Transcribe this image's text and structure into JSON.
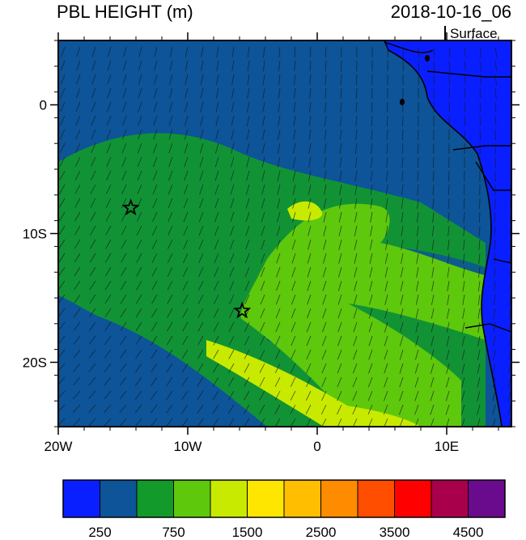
{
  "header": {
    "title": "PBL HEIGHT (m)",
    "datetime": "2018-10-16_06",
    "level": "Surface"
  },
  "chart_data": {
    "type": "heatmap",
    "title": "PBL HEIGHT (m)",
    "xlim": [
      -20,
      15
    ],
    "ylim": [
      -25,
      5
    ],
    "x_tick_values": [
      -20,
      -10,
      0,
      10
    ],
    "x_ticks": [
      "20W",
      "10W",
      "0",
      "10E"
    ],
    "y_tick_values": [
      0,
      -10,
      -20
    ],
    "y_ticks": [
      "0",
      "10S",
      "20S"
    ],
    "markers": [
      {
        "name": "star",
        "lon": -14.4,
        "lat": -8.0
      },
      {
        "name": "star",
        "lon": -5.8,
        "lat": -16.0
      }
    ],
    "colorbar": {
      "colors": [
        "#0a1fff",
        "#0d5499",
        "#129a2a",
        "#5ec80c",
        "#c8ea00",
        "#ffe600",
        "#ffbf00",
        "#ff8c00",
        "#ff4e00",
        "#ff0000",
        "#a8004a",
        "#6a0a8c"
      ],
      "label_values": [
        "250",
        "750",
        "1500",
        "2500",
        "3500",
        "4500"
      ]
    }
  }
}
